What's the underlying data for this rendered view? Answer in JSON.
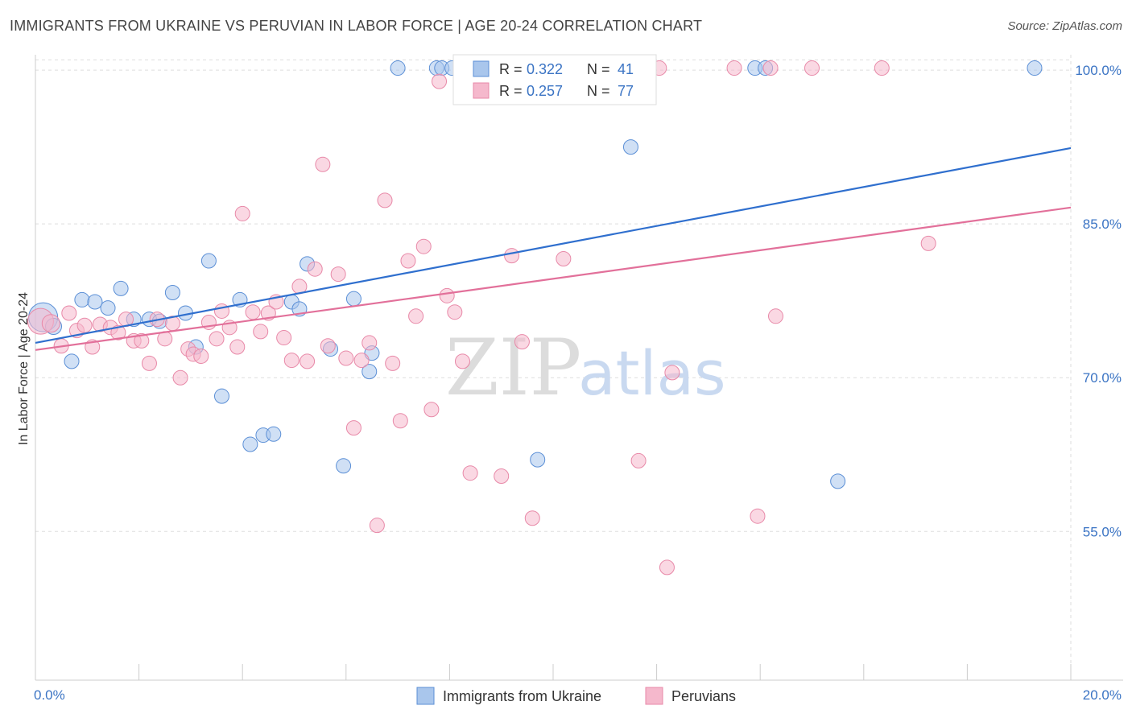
{
  "title": "IMMIGRANTS FROM UKRAINE VS PERUVIAN IN LABOR FORCE | AGE 20-24 CORRELATION CHART",
  "source": "Source: ZipAtlas.com",
  "watermark": {
    "zip": "ZIP",
    "atlas": "atlas"
  },
  "colors": {
    "blue_fill": "#a9c6ec",
    "blue_stroke": "#5b8fd6",
    "blue_line": "#2f6fce",
    "pink_fill": "#f5b8cc",
    "pink_stroke": "#e889a8",
    "pink_line": "#e2709a",
    "grid": "#dddddd",
    "tick_text": "#3b74c4"
  },
  "legend": {
    "rows": [
      {
        "r_label": "R = ",
        "r_value": "0.322",
        "n_label": "N = ",
        "n_value": "41"
      },
      {
        "r_label": "R = ",
        "r_value": "0.257",
        "n_label": "N = ",
        "n_value": "77"
      }
    ]
  },
  "chart_data": {
    "type": "scatter",
    "title": "IMMIGRANTS FROM UKRAINE VS PERUVIAN IN LABOR FORCE | AGE 20-24 CORRELATION CHART",
    "xlabel": "",
    "ylabel": "In Labor Force | Age 20-24",
    "xlim": [
      0,
      20
    ],
    "ylim": [
      40.5,
      101.5
    ],
    "x_tick_labels": [
      "0.0%",
      "20.0%"
    ],
    "y_ticks": [
      55,
      70,
      85,
      100
    ],
    "y_tick_labels": [
      "55.0%",
      "70.0%",
      "85.0%",
      "100.0%"
    ],
    "grid": true,
    "legend_position": "top-center",
    "series": [
      {
        "name": "Immigrants from Ukraine",
        "r": 0.322,
        "n": 41,
        "trend": {
          "x": [
            0,
            20
          ],
          "y": [
            73.4,
            92.4
          ]
        },
        "points": [
          [
            0.15,
            75.9,
            18
          ],
          [
            0.35,
            75.0,
            10
          ],
          [
            0.7,
            71.6,
            9
          ],
          [
            0.9,
            77.6,
            9
          ],
          [
            1.15,
            77.4,
            9
          ],
          [
            1.4,
            76.8,
            9
          ],
          [
            1.65,
            78.7,
            9
          ],
          [
            1.9,
            75.7,
            9
          ],
          [
            2.2,
            75.7,
            9
          ],
          [
            2.4,
            75.5,
            9
          ],
          [
            2.65,
            78.3,
            9
          ],
          [
            2.9,
            76.3,
            9
          ],
          [
            3.1,
            73.0,
            9
          ],
          [
            3.35,
            81.4,
            9
          ],
          [
            3.6,
            68.2,
            9
          ],
          [
            3.95,
            77.6,
            9
          ],
          [
            4.15,
            63.5,
            9
          ],
          [
            4.4,
            64.4,
            9
          ],
          [
            4.6,
            64.5,
            9
          ],
          [
            4.95,
            77.4,
            9
          ],
          [
            5.1,
            76.7,
            9
          ],
          [
            5.25,
            81.1,
            9
          ],
          [
            5.7,
            72.8,
            9
          ],
          [
            5.95,
            61.4,
            9
          ],
          [
            6.15,
            77.7,
            9
          ],
          [
            6.45,
            70.6,
            9
          ],
          [
            6.5,
            72.4,
            9
          ],
          [
            7.0,
            100.2,
            9
          ],
          [
            7.75,
            100.2,
            9
          ],
          [
            7.85,
            100.2,
            9
          ],
          [
            8.05,
            100.2,
            9
          ],
          [
            8.55,
            100.2,
            9
          ],
          [
            9.1,
            100.2,
            9
          ],
          [
            9.15,
            100.2,
            9
          ],
          [
            9.7,
            62.0,
            9
          ],
          [
            10.4,
            100.2,
            9
          ],
          [
            11.5,
            92.5,
            9
          ],
          [
            13.9,
            100.2,
            9
          ],
          [
            14.1,
            100.2,
            9
          ],
          [
            15.5,
            59.9,
            9
          ],
          [
            19.3,
            100.2,
            9
          ]
        ]
      },
      {
        "name": "Peruvians",
        "r": 0.257,
        "n": 77,
        "trend": {
          "x": [
            0,
            20
          ],
          "y": [
            72.7,
            86.6
          ]
        },
        "points": [
          [
            0.1,
            75.5,
            16
          ],
          [
            0.3,
            75.3,
            11
          ],
          [
            0.5,
            73.1,
            9
          ],
          [
            0.65,
            76.3,
            9
          ],
          [
            0.8,
            74.6,
            9
          ],
          [
            0.95,
            75.1,
            9
          ],
          [
            1.1,
            73.0,
            9
          ],
          [
            1.25,
            75.2,
            9
          ],
          [
            1.45,
            74.9,
            9
          ],
          [
            1.6,
            74.4,
            9
          ],
          [
            1.75,
            75.7,
            9
          ],
          [
            1.9,
            73.6,
            9
          ],
          [
            2.05,
            73.6,
            9
          ],
          [
            2.2,
            71.4,
            9
          ],
          [
            2.35,
            75.7,
            9
          ],
          [
            2.5,
            73.8,
            9
          ],
          [
            2.65,
            75.3,
            9
          ],
          [
            2.8,
            70.0,
            9
          ],
          [
            2.95,
            72.8,
            9
          ],
          [
            3.05,
            72.3,
            9
          ],
          [
            3.2,
            72.1,
            9
          ],
          [
            3.35,
            75.4,
            9
          ],
          [
            3.5,
            73.8,
            9
          ],
          [
            3.6,
            76.5,
            9
          ],
          [
            3.75,
            74.9,
            9
          ],
          [
            3.9,
            73.0,
            9
          ],
          [
            4.0,
            86.0,
            9
          ],
          [
            4.2,
            76.4,
            9
          ],
          [
            4.35,
            74.5,
            9
          ],
          [
            4.5,
            76.3,
            9
          ],
          [
            4.65,
            77.4,
            9
          ],
          [
            4.8,
            73.9,
            9
          ],
          [
            4.95,
            71.7,
            9
          ],
          [
            5.1,
            78.9,
            9
          ],
          [
            5.25,
            71.6,
            9
          ],
          [
            5.4,
            80.6,
            9
          ],
          [
            5.55,
            90.8,
            9
          ],
          [
            5.65,
            73.1,
            9
          ],
          [
            5.85,
            80.1,
            9
          ],
          [
            6.0,
            71.9,
            9
          ],
          [
            6.15,
            65.1,
            9
          ],
          [
            6.3,
            71.7,
            9
          ],
          [
            6.45,
            73.4,
            9
          ],
          [
            6.6,
            55.6,
            9
          ],
          [
            6.75,
            87.3,
            9
          ],
          [
            6.9,
            71.4,
            9
          ],
          [
            7.05,
            65.8,
            9
          ],
          [
            7.2,
            81.4,
            9
          ],
          [
            7.35,
            76.0,
            9
          ],
          [
            7.5,
            82.8,
            9
          ],
          [
            7.65,
            66.9,
            9
          ],
          [
            7.8,
            98.9,
            9
          ],
          [
            7.95,
            78.0,
            9
          ],
          [
            8.1,
            76.4,
            9
          ],
          [
            8.25,
            71.6,
            9
          ],
          [
            8.4,
            60.7,
            9
          ],
          [
            8.6,
            100.2,
            9
          ],
          [
            9.0,
            60.4,
            9
          ],
          [
            9.2,
            81.9,
            9
          ],
          [
            9.4,
            73.5,
            9
          ],
          [
            9.6,
            56.3,
            9
          ],
          [
            9.85,
            100.2,
            9
          ],
          [
            10.2,
            81.6,
            9
          ],
          [
            11.2,
            100.2,
            9
          ],
          [
            11.65,
            61.9,
            9
          ],
          [
            12.05,
            100.2,
            9
          ],
          [
            12.2,
            51.5,
            9
          ],
          [
            12.3,
            70.5,
            9
          ],
          [
            13.5,
            100.2,
            9
          ],
          [
            13.95,
            56.5,
            9
          ],
          [
            14.2,
            100.2,
            9
          ],
          [
            14.3,
            76.0,
            9
          ],
          [
            15.0,
            100.2,
            9
          ],
          [
            16.35,
            100.2,
            9
          ],
          [
            17.25,
            83.1,
            9
          ],
          [
            8.9,
            100.2,
            9
          ],
          [
            9.95,
            100.2,
            9
          ]
        ]
      }
    ]
  }
}
